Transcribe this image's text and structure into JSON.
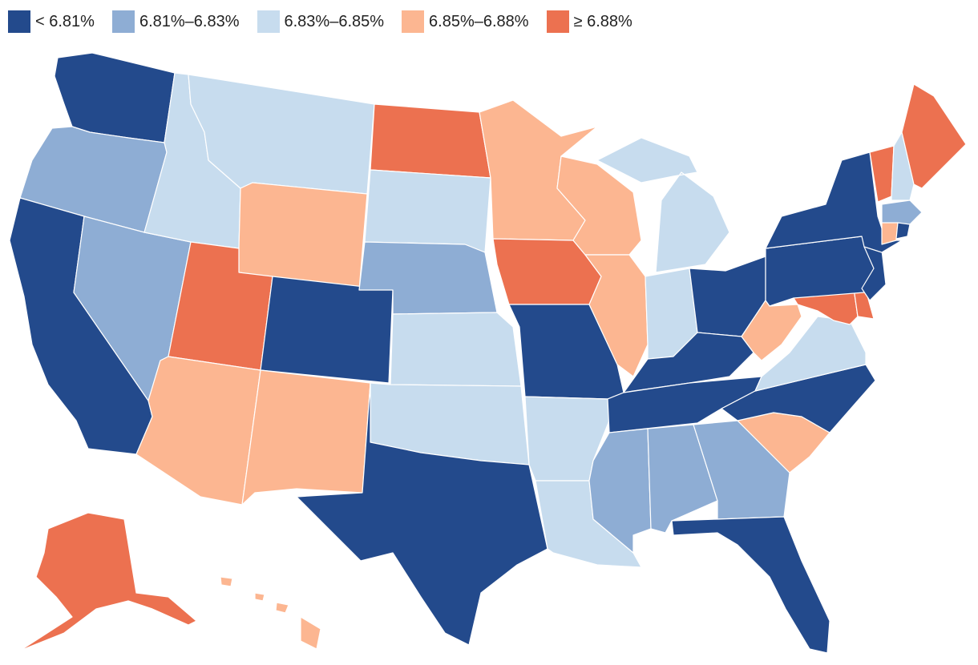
{
  "colors": {
    "bin1": "#234a8c",
    "bin2": "#8eadd4",
    "bin3": "#c7dcee",
    "bin4": "#fcb691",
    "bin5": "#ec7150"
  },
  "legend": {
    "items": [
      {
        "label": "< 6.81%",
        "color_key": "bin1"
      },
      {
        "label": "6.81%–6.83%",
        "color_key": "bin2"
      },
      {
        "label": "6.83%–6.85%",
        "color_key": "bin3"
      },
      {
        "label": "6.85%–6.88%",
        "color_key": "bin4"
      },
      {
        "label": "≥ 6.88%",
        "color_key": "bin5"
      }
    ]
  },
  "states": [
    {
      "id": "WA",
      "bin": "bin1"
    },
    {
      "id": "OR",
      "bin": "bin2"
    },
    {
      "id": "CA",
      "bin": "bin1"
    },
    {
      "id": "NV",
      "bin": "bin2"
    },
    {
      "id": "ID",
      "bin": "bin3"
    },
    {
      "id": "MT",
      "bin": "bin3"
    },
    {
      "id": "WY",
      "bin": "bin4"
    },
    {
      "id": "UT",
      "bin": "bin5"
    },
    {
      "id": "AZ",
      "bin": "bin4"
    },
    {
      "id": "CO",
      "bin": "bin1"
    },
    {
      "id": "NM",
      "bin": "bin4"
    },
    {
      "id": "ND",
      "bin": "bin5"
    },
    {
      "id": "SD",
      "bin": "bin3"
    },
    {
      "id": "NE",
      "bin": "bin2"
    },
    {
      "id": "KS",
      "bin": "bin3"
    },
    {
      "id": "OK",
      "bin": "bin3"
    },
    {
      "id": "TX",
      "bin": "bin1"
    },
    {
      "id": "MN",
      "bin": "bin4"
    },
    {
      "id": "IA",
      "bin": "bin5"
    },
    {
      "id": "MO",
      "bin": "bin1"
    },
    {
      "id": "AR",
      "bin": "bin3"
    },
    {
      "id": "LA",
      "bin": "bin3"
    },
    {
      "id": "WI",
      "bin": "bin4"
    },
    {
      "id": "IL",
      "bin": "bin4"
    },
    {
      "id": "MI",
      "bin": "bin3"
    },
    {
      "id": "IN",
      "bin": "bin3"
    },
    {
      "id": "OH",
      "bin": "bin1"
    },
    {
      "id": "KY",
      "bin": "bin1"
    },
    {
      "id": "TN",
      "bin": "bin1"
    },
    {
      "id": "MS",
      "bin": "bin2"
    },
    {
      "id": "AL",
      "bin": "bin2"
    },
    {
      "id": "GA",
      "bin": "bin2"
    },
    {
      "id": "FL",
      "bin": "bin1"
    },
    {
      "id": "SC",
      "bin": "bin4"
    },
    {
      "id": "NC",
      "bin": "bin1"
    },
    {
      "id": "VA",
      "bin": "bin3"
    },
    {
      "id": "WV",
      "bin": "bin4"
    },
    {
      "id": "MD",
      "bin": "bin5"
    },
    {
      "id": "DE",
      "bin": "bin5"
    },
    {
      "id": "NJ",
      "bin": "bin1"
    },
    {
      "id": "PA",
      "bin": "bin1"
    },
    {
      "id": "NY",
      "bin": "bin1"
    },
    {
      "id": "VT",
      "bin": "bin5"
    },
    {
      "id": "NH",
      "bin": "bin3"
    },
    {
      "id": "ME",
      "bin": "bin5"
    },
    {
      "id": "MA",
      "bin": "bin2"
    },
    {
      "id": "CT",
      "bin": "bin4"
    },
    {
      "id": "RI",
      "bin": "bin1"
    },
    {
      "id": "AK",
      "bin": "bin5"
    },
    {
      "id": "HI",
      "bin": "bin4"
    }
  ]
}
